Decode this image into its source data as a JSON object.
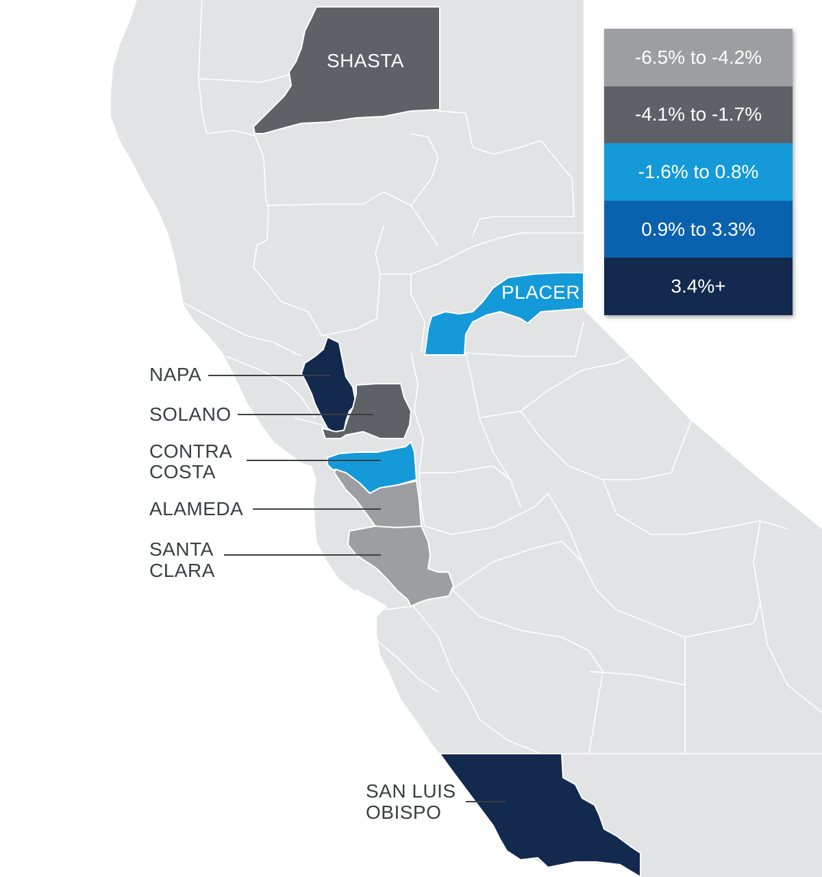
{
  "colors": {
    "land": "#e2e3e4",
    "range_1": "#9c9ea1",
    "range_2": "#5e6165",
    "range_3": "#159ad9",
    "range_4": "#0a61ad",
    "range_5": "#132a4e"
  },
  "legend": {
    "items": [
      {
        "label": "-6.5% to -4.2%",
        "color": "#9c9ea1"
      },
      {
        "label": "-4.1% to -1.7%",
        "color": "#5e6165"
      },
      {
        "label": "-1.6% to 0.8%",
        "color": "#159ad9"
      },
      {
        "label": "0.9% to 3.3%",
        "color": "#0a61ad"
      },
      {
        "label": "3.4%+",
        "color": "#132a4e"
      }
    ]
  },
  "counties": {
    "shasta": {
      "label": "SHASTA",
      "range": "-4.1% to -1.7%"
    },
    "placer": {
      "label": "PLACER",
      "range": "-1.6% to 0.8%"
    },
    "napa": {
      "label": "NAPA",
      "range": "3.4%+"
    },
    "solano": {
      "label": "SOLANO",
      "range": "-4.1% to -1.7%"
    },
    "contra_costa": {
      "label_line1": "CONTRA",
      "label_line2": "COSTA",
      "range": "-1.6% to 0.8%"
    },
    "alameda": {
      "label": "ALAMEDA",
      "range": "-6.5% to -4.2%"
    },
    "santa_clara": {
      "label_line1": "SANTA",
      "label_line2": "CLARA",
      "range": "-6.5% to -4.2%"
    },
    "san_luis_obispo": {
      "label_line1": "SAN LUIS",
      "label_line2": "OBISPO",
      "range": "3.4%+"
    }
  }
}
